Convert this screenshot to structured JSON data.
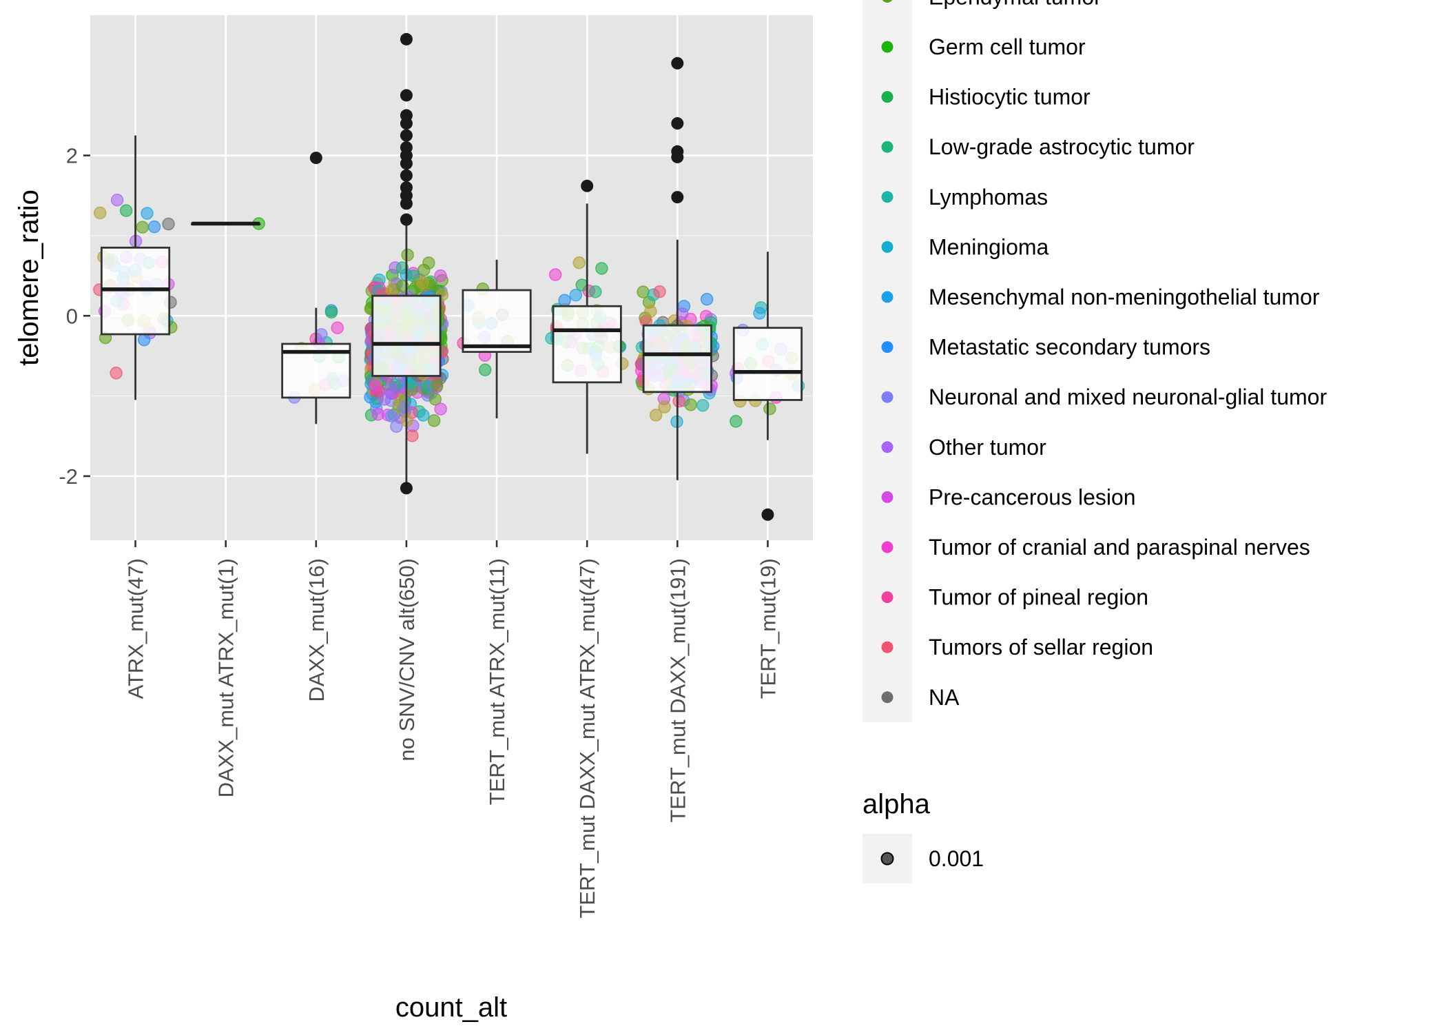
{
  "chart_data": {
    "type": "box",
    "xlabel": "count_alt",
    "ylabel": "telomere_ratio",
    "ylim": [
      -2.8,
      3.75
    ],
    "yticks": [
      -2,
      0,
      2
    ],
    "yticks_text": [
      "-2",
      "0",
      "2"
    ],
    "grid": true,
    "legend_position": "right",
    "categories": [
      "ATRX_mut(47)",
      "DAXX_mut ATRX_mut(1)",
      "DAXX_mut(16)",
      "no SNV/CNV alt(650)",
      "TERT_mut ATRX_mut(11)",
      "TERT_mut DAXX_mut ATRX_mut(47)",
      "TERT_mut DAXX_mut(191)",
      "TERT_mut(19)"
    ],
    "boxes": [
      {
        "category": "ATRX_mut(47)",
        "min": -1.05,
        "q1": -0.23,
        "median": 0.33,
        "q3": 0.85,
        "max": 2.25,
        "outliers": []
      },
      {
        "category": "DAXX_mut ATRX_mut(1)",
        "min": 1.15,
        "q1": 1.15,
        "median": 1.15,
        "q3": 1.15,
        "max": 1.15,
        "outliers": []
      },
      {
        "category": "DAXX_mut(16)",
        "min": -1.35,
        "q1": -1.02,
        "median": -0.45,
        "q3": -0.35,
        "max": 0.1,
        "outliers": [
          1.97
        ]
      },
      {
        "category": "no SNV/CNV alt(650)",
        "min": -2.1,
        "q1": -0.75,
        "median": -0.35,
        "q3": 0.25,
        "max": 1.15,
        "outliers": [
          3.45,
          2.75,
          2.5,
          2.4,
          2.25,
          2.1,
          2.0,
          1.9,
          1.75,
          1.6,
          1.5,
          1.4,
          1.2,
          -2.15
        ]
      },
      {
        "category": "TERT_mut ATRX_mut(11)",
        "min": -1.28,
        "q1": -0.45,
        "median": -0.38,
        "q3": 0.32,
        "max": 0.7,
        "outliers": []
      },
      {
        "category": "TERT_mut DAXX_mut ATRX_mut(47)",
        "min": -1.72,
        "q1": -0.83,
        "median": -0.18,
        "q3": 0.12,
        "max": 1.4,
        "outliers": [
          1.62
        ]
      },
      {
        "category": "TERT_mut DAXX_mut(191)",
        "min": -2.05,
        "q1": -0.95,
        "median": -0.48,
        "q3": -0.12,
        "max": 0.95,
        "outliers": [
          3.15,
          2.4,
          2.05,
          1.98,
          1.48
        ]
      },
      {
        "category": "TERT_mut(19)",
        "min": -1.55,
        "q1": -1.05,
        "median": -0.7,
        "q3": -0.15,
        "max": 0.8,
        "outliers": [
          -2.48
        ]
      }
    ]
  },
  "legend": {
    "clipped_item": "Ependymal tumor",
    "items": [
      {
        "label": "Germ cell tumor",
        "color": "#1db30b"
      },
      {
        "label": "Histiocytic tumor",
        "color": "#1bb04c"
      },
      {
        "label": "Low-grade astrocytic tumor",
        "color": "#1bb476"
      },
      {
        "label": "Lymphomas",
        "color": "#1eb5a8"
      },
      {
        "label": "Meningioma",
        "color": "#14aecf"
      },
      {
        "label": "Mesenchymal non-meningothelial tumor",
        "color": "#18a3e8"
      },
      {
        "label": "Metastatic secondary tumors",
        "color": "#228efa"
      },
      {
        "label": "Neuronal and mixed neuronal-glial tumor",
        "color": "#7e7ff7"
      },
      {
        "label": "Other tumor",
        "color": "#a863f2"
      },
      {
        "label": "Pre-cancerous lesion",
        "color": "#d64be8"
      },
      {
        "label": "Tumor of cranial and paraspinal nerves",
        "color": "#f03cd2"
      },
      {
        "label": "Tumor of pineal region",
        "color": "#f33f9e"
      },
      {
        "label": "Tumors of sellar region",
        "color": "#f4516e"
      },
      {
        "label": "NA",
        "color": "#6e6e6e"
      }
    ],
    "clipped_color": "#5fa314",
    "alpha_title": "alpha",
    "alpha_items": [
      "0.001"
    ]
  },
  "colors": {
    "panel": "#e5e5e5",
    "grid_major": "#ffffff",
    "grid_minor": "#f2f2f2",
    "point_main": "#b3a12e",
    "outlier": "#1a1a1a"
  }
}
